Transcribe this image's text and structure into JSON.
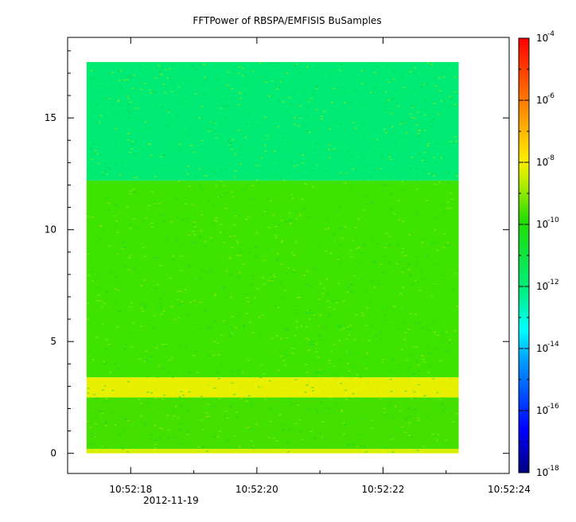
{
  "chart_data": {
    "type": "heatmap",
    "title": "FFTPower of RBSPA/EMFISIS  BuSamples",
    "xlabel": "",
    "ylabel": "",
    "x_date_label": "2012-11-19",
    "x_ticks": [
      "10:52:18",
      "10:52:20",
      "10:52:22",
      "10:52:24"
    ],
    "xlim": [
      "10:52:17.0",
      "10:52:24.0"
    ],
    "data_time_range": [
      "10:52:17.3",
      "10:52:23.2"
    ],
    "y_ticks": [
      0,
      5,
      10,
      15
    ],
    "ylim": [
      -0.9,
      18.6
    ],
    "data_y_range": [
      0,
      17.5
    ],
    "colorbar": {
      "scale": "log",
      "range": [
        "1e-18",
        "1e-4"
      ],
      "colormap": "rainbow",
      "tick_bases": [
        "10",
        "10",
        "10",
        "10",
        "10",
        "10",
        "10",
        "10"
      ],
      "tick_exponents": [
        "-4",
        "-6",
        "-8",
        "-10",
        "-12",
        "-14",
        "-16",
        "-18"
      ],
      "tick_exponent_values": [
        -4,
        -6,
        -8,
        -10,
        -12,
        -14,
        -16,
        -18
      ]
    },
    "regions": [
      {
        "y_from": 0,
        "y_to": 0.2,
        "log10_power": -8.6,
        "color": "#d8f000"
      },
      {
        "y_from": 0.2,
        "y_to": 2.5,
        "log10_power": -10.3,
        "color": "#44e000"
      },
      {
        "y_from": 2.5,
        "y_to": 3.4,
        "log10_power": -8.5,
        "color": "#e8f000"
      },
      {
        "y_from": 3.4,
        "y_to": 12.2,
        "log10_power": -10.3,
        "color": "#3ee400"
      },
      {
        "y_from": 12.2,
        "y_to": 17.5,
        "log10_power": -11.8,
        "color": "#00ea74"
      }
    ]
  }
}
